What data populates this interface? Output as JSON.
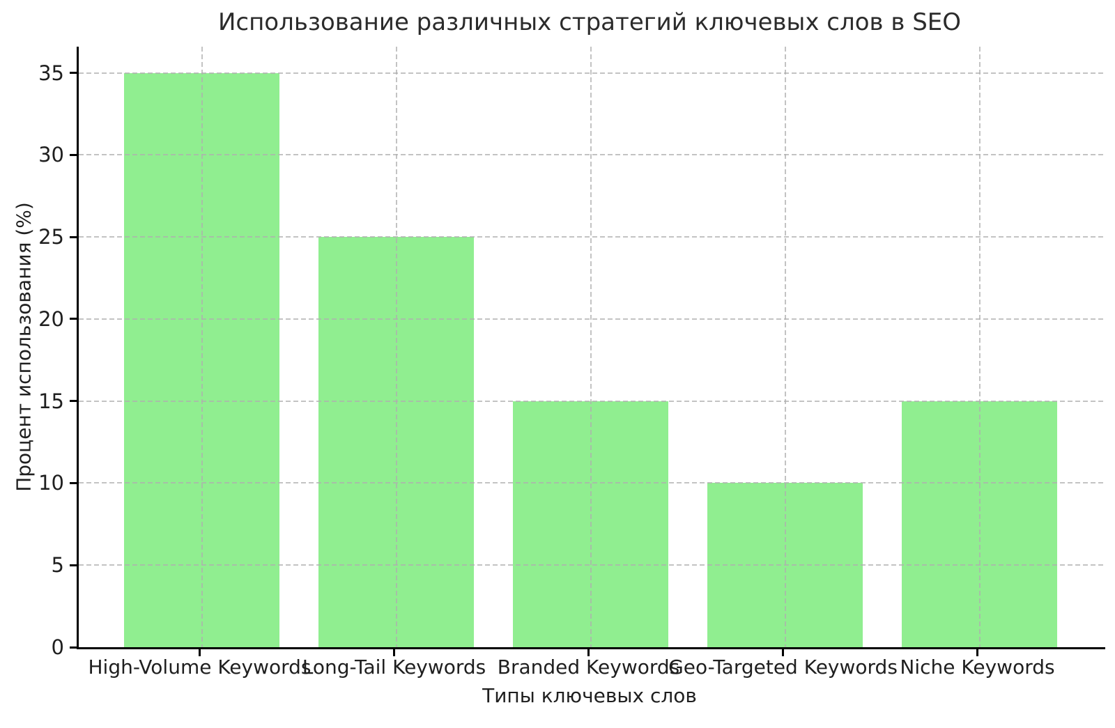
{
  "chart_data": {
    "type": "bar",
    "title": "Использование различных стратегий ключевых слов в SEO",
    "xlabel": "Типы ключевых слов",
    "ylabel": "Процент использования (%)",
    "categories": [
      "High-Volume Keywords",
      "Long-Tail Keywords",
      "Branded Keywords",
      "Geo-Targeted Keywords",
      "Niche Keywords"
    ],
    "values": [
      35,
      25,
      15,
      10,
      15
    ],
    "yticks": [
      0,
      5,
      10,
      15,
      20,
      25,
      30,
      35
    ],
    "ylim": [
      0,
      36.6
    ],
    "bar_color": "#90EE90",
    "grid": "dashed",
    "grid_color": "#b0b0b0",
    "grid_above_bars": true,
    "legend_position": "none"
  }
}
